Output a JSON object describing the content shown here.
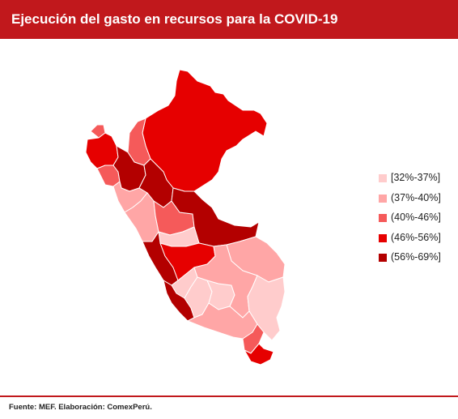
{
  "title": "Ejecución del gasto en recursos para la COVID-19",
  "legend": {
    "items": [
      {
        "label": "[32%-37%]",
        "color": "#ffcccc"
      },
      {
        "label": "(37%-40%]",
        "color": "#ffa6a6"
      },
      {
        "label": "(40%-46%]",
        "color": "#f55a5a"
      },
      {
        "label": "(46%-56%]",
        "color": "#e60000"
      },
      {
        "label": "(56%-69%]",
        "color": "#b30000"
      }
    ]
  },
  "footer": {
    "source": "Fuente: MEF. Elaboración: ComexPerú."
  },
  "map": {
    "regions": [
      {
        "id": "loreto",
        "class": 3
      },
      {
        "id": "tumbes",
        "class": 2
      },
      {
        "id": "piura",
        "class": 3
      },
      {
        "id": "lambayeque",
        "class": 2
      },
      {
        "id": "cajamarca",
        "class": 4
      },
      {
        "id": "amazonas",
        "class": 2
      },
      {
        "id": "san-martin",
        "class": 4
      },
      {
        "id": "la-libertad",
        "class": 1
      },
      {
        "id": "ancash",
        "class": 1
      },
      {
        "id": "huanuco",
        "class": 2
      },
      {
        "id": "ucayali",
        "class": 4
      },
      {
        "id": "pasco",
        "class": 0
      },
      {
        "id": "lima",
        "class": 4
      },
      {
        "id": "junin",
        "class": 3
      },
      {
        "id": "madre-de-dios",
        "class": 1
      },
      {
        "id": "huancavelica",
        "class": 0
      },
      {
        "id": "ica",
        "class": 4
      },
      {
        "id": "ayacucho",
        "class": 0
      },
      {
        "id": "apurimac",
        "class": 0
      },
      {
        "id": "cusco",
        "class": 1
      },
      {
        "id": "puno",
        "class": 0
      },
      {
        "id": "arequipa",
        "class": 1
      },
      {
        "id": "moquegua",
        "class": 2
      },
      {
        "id": "tacna",
        "class": 3
      }
    ]
  }
}
